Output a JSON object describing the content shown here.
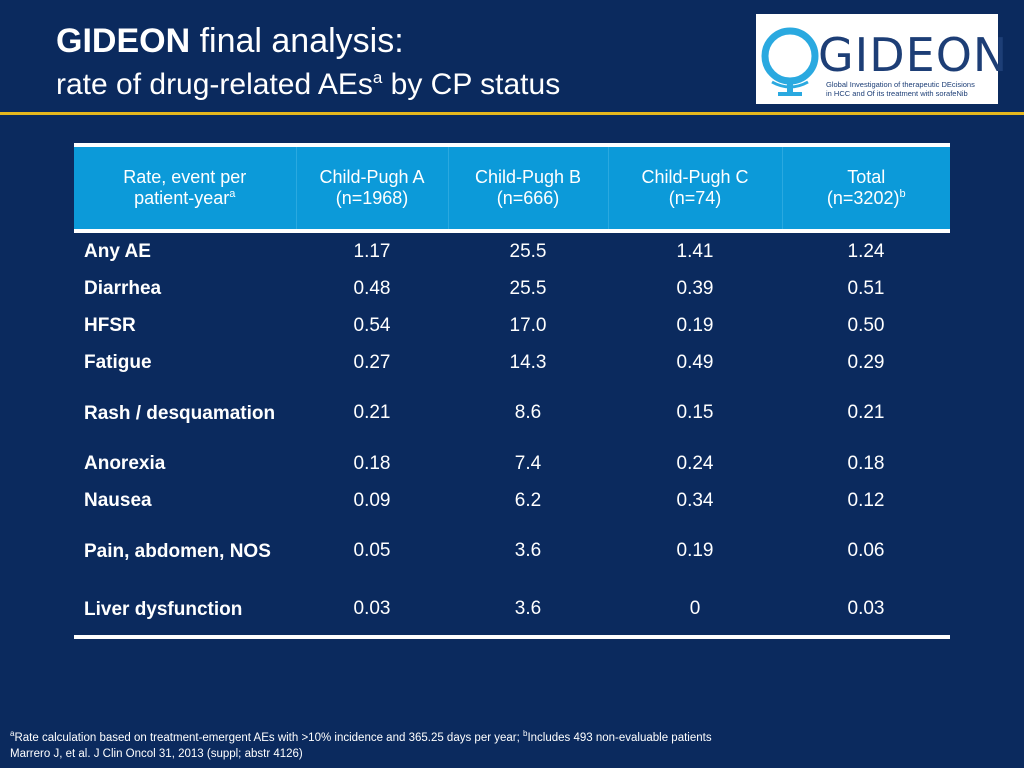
{
  "title": {
    "bold": "GIDEON",
    "rest": " final analysis:",
    "line2_pre": "rate of drug-related AEs",
    "line2_sup": "a",
    "line2_post": " by CP status"
  },
  "logo": {
    "word": "GIDEON",
    "tagline_1": "Global Investigation of therapeutic DEcisions",
    "tagline_2": "in HCC and Of its treatment with sorafeNib"
  },
  "table": {
    "headers": [
      {
        "line1": "Rate, event per",
        "line2": "patient-year",
        "sup": "a"
      },
      {
        "line1": "Child-Pugh A",
        "line2": "(n=1968)",
        "sup": ""
      },
      {
        "line1": "Child-Pugh B",
        "line2": "(n=666)",
        "sup": ""
      },
      {
        "line1": "Child-Pugh C",
        "line2": "(n=74)",
        "sup": ""
      },
      {
        "line1": "Total",
        "line2": "(n=3202)",
        "sup": "b"
      }
    ],
    "rows": [
      {
        "label": "Any AE",
        "a": "1.17",
        "b": "25.5",
        "c": "1.41",
        "total": "1.24"
      },
      {
        "label": "Diarrhea",
        "a": "0.48",
        "b": "25.5",
        "c": "0.39",
        "total": "0.51"
      },
      {
        "label": "HFSR",
        "a": "0.54",
        "b": "17.0",
        "c": "0.19",
        "total": "0.50"
      },
      {
        "label": "Fatigue",
        "a": "0.27",
        "b": "14.3",
        "c": "0.49",
        "total": "0.29"
      },
      {
        "label": "Rash / desquamation",
        "a": "0.21",
        "b": "8.6",
        "c": "0.15",
        "total": "0.21"
      },
      {
        "label": "Anorexia",
        "a": "0.18",
        "b": "7.4",
        "c": "0.24",
        "total": "0.18"
      },
      {
        "label": "Nausea",
        "a": "0.09",
        "b": "6.2",
        "c": "0.34",
        "total": "0.12"
      },
      {
        "label": "Pain, abdomen, NOS",
        "a": "0.05",
        "b": "3.6",
        "c": "0.19",
        "total": "0.06"
      },
      {
        "label": "Liver dysfunction",
        "a": "0.03",
        "b": "3.6",
        "c": "0",
        "total": "0.03"
      }
    ]
  },
  "footnotes": {
    "sup_a": "a",
    "text_a": "Rate calculation based on treatment-emergent AEs with >10% incidence and 365.25 days per year; ",
    "sup_b": "b",
    "text_b": "Includes 493 non-evaluable patients",
    "citation": "Marrero J, et al. J Clin Oncol 31, 2013 (suppl; abstr 4126)"
  },
  "colors": {
    "background": "#0b2a5e",
    "header_fill": "#0c9ad9",
    "rule": "#e6b81e"
  }
}
